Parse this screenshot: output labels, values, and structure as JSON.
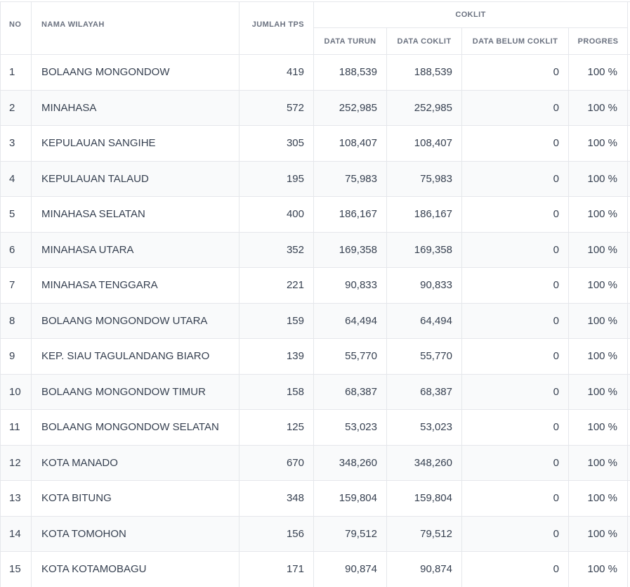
{
  "headers": {
    "no": "NO",
    "nama_wilayah": "NAMA WILAYAH",
    "jumlah_tps": "JUMLAH TPS",
    "group": "COKLIT",
    "data_turun": "DATA TURUN",
    "data_coklit": "DATA COKLIT",
    "data_belum_coklit": "DATA BELUM COKLIT",
    "progres": "PROGRES"
  },
  "rows": [
    {
      "no": "1",
      "nama": "BOLAANG MONGONDOW",
      "tps": "419",
      "turun": "188,539",
      "coklit": "188,539",
      "belum": "0",
      "progres": "100 %"
    },
    {
      "no": "2",
      "nama": "MINAHASA",
      "tps": "572",
      "turun": "252,985",
      "coklit": "252,985",
      "belum": "0",
      "progres": "100 %"
    },
    {
      "no": "3",
      "nama": "KEPULAUAN SANGIHE",
      "tps": "305",
      "turun": "108,407",
      "coklit": "108,407",
      "belum": "0",
      "progres": "100 %"
    },
    {
      "no": "4",
      "nama": "KEPULAUAN TALAUD",
      "tps": "195",
      "turun": "75,983",
      "coklit": "75,983",
      "belum": "0",
      "progres": "100 %"
    },
    {
      "no": "5",
      "nama": "MINAHASA SELATAN",
      "tps": "400",
      "turun": "186,167",
      "coklit": "186,167",
      "belum": "0",
      "progres": "100 %"
    },
    {
      "no": "6",
      "nama": "MINAHASA UTARA",
      "tps": "352",
      "turun": "169,358",
      "coklit": "169,358",
      "belum": "0",
      "progres": "100 %"
    },
    {
      "no": "7",
      "nama": "MINAHASA TENGGARA",
      "tps": "221",
      "turun": "90,833",
      "coklit": "90,833",
      "belum": "0",
      "progres": "100 %"
    },
    {
      "no": "8",
      "nama": "BOLAANG MONGONDOW UTARA",
      "tps": "159",
      "turun": "64,494",
      "coklit": "64,494",
      "belum": "0",
      "progres": "100 %"
    },
    {
      "no": "9",
      "nama": "KEP. SIAU TAGULANDANG BIARO",
      "tps": "139",
      "turun": "55,770",
      "coklit": "55,770",
      "belum": "0",
      "progres": "100 %"
    },
    {
      "no": "10",
      "nama": "BOLAANG MONGONDOW TIMUR",
      "tps": "158",
      "turun": "68,387",
      "coklit": "68,387",
      "belum": "0",
      "progres": "100 %"
    },
    {
      "no": "11",
      "nama": "BOLAANG MONGONDOW SELATAN",
      "tps": "125",
      "turun": "53,023",
      "coklit": "53,023",
      "belum": "0",
      "progres": "100 %"
    },
    {
      "no": "12",
      "nama": "KOTA MANADO",
      "tps": "670",
      "turun": "348,260",
      "coklit": "348,260",
      "belum": "0",
      "progres": "100 %"
    },
    {
      "no": "13",
      "nama": "KOTA BITUNG",
      "tps": "348",
      "turun": "159,804",
      "coklit": "159,804",
      "belum": "0",
      "progres": "100 %"
    },
    {
      "no": "14",
      "nama": "KOTA TOMOHON",
      "tps": "156",
      "turun": "79,512",
      "coklit": "79,512",
      "belum": "0",
      "progres": "100 %"
    },
    {
      "no": "15",
      "nama": "KOTA KOTAMOBAGU",
      "tps": "171",
      "turun": "90,874",
      "coklit": "90,874",
      "belum": "0",
      "progres": "100 %"
    }
  ]
}
